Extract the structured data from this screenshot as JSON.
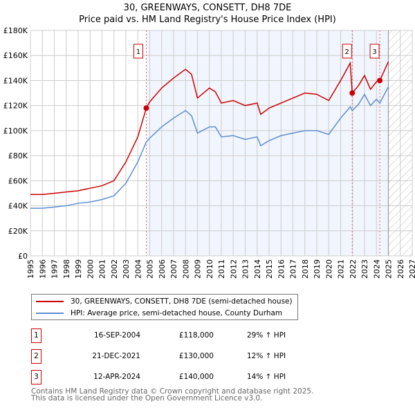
{
  "chart_data": {
    "type": "line",
    "title": "30, GREENWAYS, CONSETT, DH8 7DE",
    "subtitle": "Price paid vs. HM Land Registry's House Price Index (HPI)",
    "xlim": [
      1995,
      2027
    ],
    "ylim": [
      0,
      180000
    ],
    "x_ticks": [
      "1995",
      "1996",
      "1997",
      "1998",
      "1999",
      "2000",
      "2001",
      "2002",
      "2003",
      "2004",
      "2005",
      "2006",
      "2007",
      "2008",
      "2009",
      "2010",
      "2011",
      "2012",
      "2013",
      "2014",
      "2015",
      "2016",
      "2017",
      "2018",
      "2019",
      "2020",
      "2021",
      "2022",
      "2023",
      "2024",
      "2025",
      "2026",
      "2027"
    ],
    "y_ticks": [
      {
        "v": 0,
        "label": "£0"
      },
      {
        "v": 20000,
        "label": "£20K"
      },
      {
        "v": 40000,
        "label": "£40K"
      },
      {
        "v": 60000,
        "label": "£60K"
      },
      {
        "v": 80000,
        "label": "£80K"
      },
      {
        "v": 100000,
        "label": "£100K"
      },
      {
        "v": 120000,
        "label": "£120K"
      },
      {
        "v": 140000,
        "label": "£140K"
      },
      {
        "v": 160000,
        "label": "£160K"
      },
      {
        "v": 180000,
        "label": "£180K"
      }
    ],
    "grid": true,
    "shaded_range": [
      2004.71,
      2025.0
    ],
    "forecast_hatch_range": [
      2025.0,
      2027
    ],
    "series": [
      {
        "name": "30, GREENWAYS, CONSETT, DH8 7DE (semi-detached house)",
        "color": "#cc0000",
        "x": [
          1995,
          1996,
          1997,
          1998,
          1999,
          2000,
          2001,
          2002,
          2003,
          2004,
          2004.71,
          2005,
          2006,
          2007,
          2008,
          2008.5,
          2009,
          2010,
          2010.5,
          2011,
          2012,
          2013,
          2014,
          2014.3,
          2015,
          2016,
          2017,
          2018,
          2019,
          2020,
          2021,
          2021.8,
          2021.97,
          2022.5,
          2023,
          2023.5,
          2024,
          2024.28,
          2025
        ],
        "y": [
          49000,
          49000,
          50000,
          51000,
          52000,
          54000,
          56000,
          60000,
          75000,
          95000,
          118000,
          123000,
          134000,
          142000,
          149000,
          145000,
          126000,
          134000,
          131000,
          122000,
          124000,
          120000,
          122000,
          113000,
          118000,
          122000,
          126000,
          130000,
          129000,
          124000,
          140000,
          154000,
          130000,
          136000,
          144000,
          133000,
          139000,
          140000,
          155000
        ]
      },
      {
        "name": "HPI: Average price, semi-detached house, County Durham",
        "color": "#5b8fd0",
        "x": [
          1995,
          1996,
          1997,
          1998,
          1999,
          2000,
          2001,
          2002,
          2003,
          2004,
          2004.71,
          2005,
          2006,
          2007,
          2008,
          2008.5,
          2009,
          2010,
          2010.5,
          2011,
          2012,
          2013,
          2014,
          2014.3,
          2015,
          2016,
          2017,
          2018,
          2019,
          2020,
          2021,
          2021.8,
          2021.97,
          2022.5,
          2023,
          2023.5,
          2024,
          2024.28,
          2025
        ],
        "y": [
          38000,
          38000,
          39000,
          40000,
          42000,
          43000,
          45000,
          48000,
          58000,
          75000,
          91000,
          94000,
          103000,
          110000,
          116000,
          112000,
          98000,
          103000,
          103000,
          95000,
          96000,
          93000,
          95000,
          88000,
          92000,
          96000,
          98000,
          100000,
          100000,
          97000,
          110000,
          119000,
          116000,
          121000,
          129000,
          120000,
          125000,
          122000,
          135000
        ]
      }
    ],
    "sales": [
      {
        "label": "1",
        "x": 2004.71,
        "y": 118000,
        "date": "16-SEP-2004",
        "price": "£118,000",
        "hpi": "29% ↑ HPI"
      },
      {
        "label": "2",
        "x": 2021.97,
        "y": 130000,
        "date": "21-DEC-2021",
        "price": "£130,000",
        "hpi": "12% ↑ HPI"
      },
      {
        "label": "3",
        "x": 2024.28,
        "y": 140000,
        "date": "12-APR-2024",
        "price": "£140,000",
        "hpi": "14% ↑ HPI"
      }
    ]
  },
  "footer": {
    "line1": "Contains HM Land Registry data © Crown copyright and database right 2025.",
    "line2": "This data is licensed under the Open Government Licence v3.0."
  }
}
